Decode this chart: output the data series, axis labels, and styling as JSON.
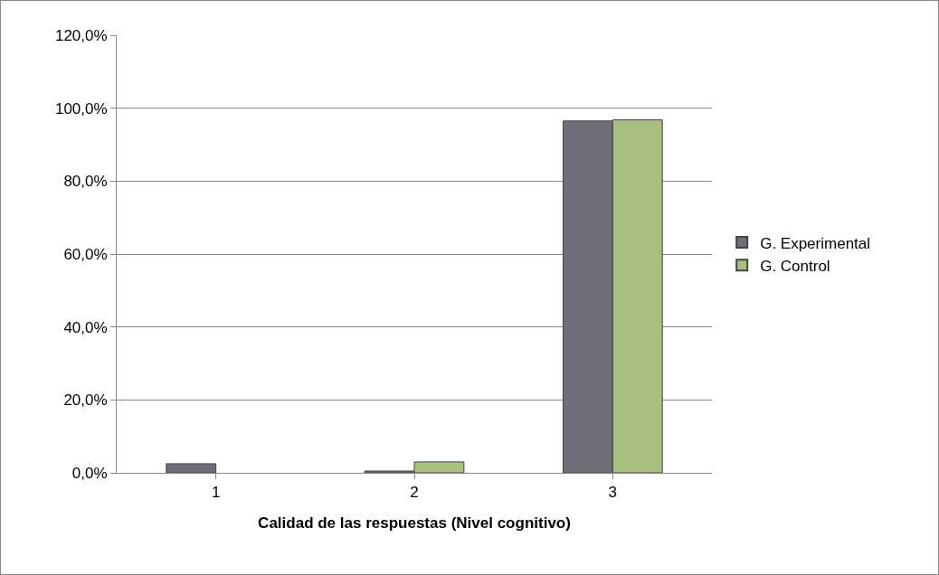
{
  "chart_data": {
    "type": "bar",
    "xlabel": "Calidad de las respuestas (Nivel cognitivo)",
    "categories": [
      "1",
      "2",
      "3"
    ],
    "series": [
      {
        "name": "G. Experimental",
        "color": "#6e6e78",
        "values": [
          2.5,
          0.5,
          96.5
        ]
      },
      {
        "name": "G. Control",
        "color": "#a9c080",
        "values": [
          null,
          3.0,
          96.8
        ]
      }
    ],
    "ylim": [
      0,
      120
    ],
    "yticks": [
      {
        "value": 0,
        "label": "0,0%"
      },
      {
        "value": 20,
        "label": "20,0%"
      },
      {
        "value": 40,
        "label": "40,0%"
      },
      {
        "value": 60,
        "label": "60,0%"
      },
      {
        "value": 80,
        "label": "80,0%"
      },
      {
        "value": 100,
        "label": "100,0%"
      },
      {
        "value": 120,
        "label": "120,0%"
      }
    ],
    "grid": "y",
    "legend": "right"
  }
}
